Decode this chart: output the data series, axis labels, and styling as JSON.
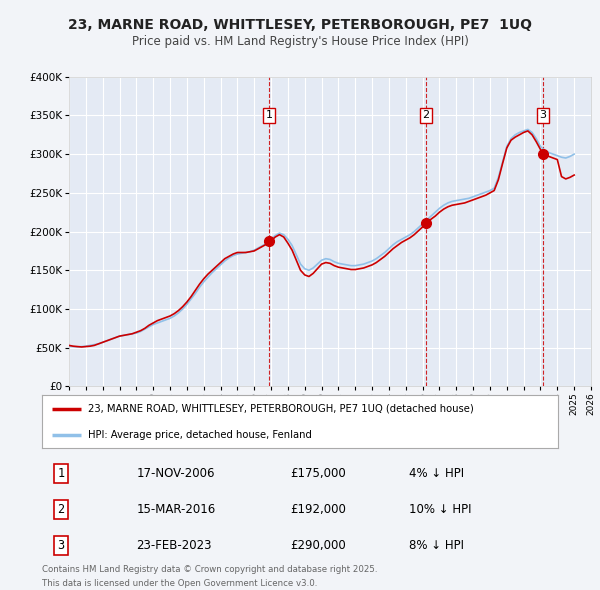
{
  "title": "23, MARNE ROAD, WHITTLESEY, PETERBOROUGH, PE7  1UQ",
  "subtitle": "Price paid vs. HM Land Registry's House Price Index (HPI)",
  "bg_color": "#f2f4f8",
  "plot_bg_color": "#e4eaf4",
  "red_line_label": "23, MARNE ROAD, WHITTLESEY, PETERBOROUGH, PE7 1UQ (detached house)",
  "blue_line_label": "HPI: Average price, detached house, Fenland",
  "transactions": [
    {
      "num": 1,
      "date": "17-NOV-2006",
      "price": 175000,
      "pct": "4%",
      "dir": "↓",
      "year": 2006.88
    },
    {
      "num": 2,
      "date": "15-MAR-2016",
      "price": 192000,
      "pct": "10%",
      "dir": "↓",
      "year": 2016.21
    },
    {
      "num": 3,
      "date": "23-FEB-2023",
      "price": 290000,
      "pct": "8%",
      "dir": "↓",
      "year": 2023.14
    }
  ],
  "footer_line1": "Contains HM Land Registry data © Crown copyright and database right 2025.",
  "footer_line2": "This data is licensed under the Open Government Licence v3.0.",
  "ylim": [
    0,
    400000
  ],
  "xlim_start": 1995.0,
  "xlim_end": 2026.0,
  "hpi_color": "#90c0e8",
  "price_color": "#cc0000",
  "vline_color": "#cc0000",
  "grid_color": "#ffffff",
  "hpi_data": {
    "years": [
      1995.0,
      1995.25,
      1995.5,
      1995.75,
      1996.0,
      1996.25,
      1996.5,
      1996.75,
      1997.0,
      1997.25,
      1997.5,
      1997.75,
      1998.0,
      1998.25,
      1998.5,
      1998.75,
      1999.0,
      1999.25,
      1999.5,
      1999.75,
      2000.0,
      2000.25,
      2000.5,
      2000.75,
      2001.0,
      2001.25,
      2001.5,
      2001.75,
      2002.0,
      2002.25,
      2002.5,
      2002.75,
      2003.0,
      2003.25,
      2003.5,
      2003.75,
      2004.0,
      2004.25,
      2004.5,
      2004.75,
      2005.0,
      2005.25,
      2005.5,
      2005.75,
      2006.0,
      2006.25,
      2006.5,
      2006.75,
      2007.0,
      2007.25,
      2007.5,
      2007.75,
      2008.0,
      2008.25,
      2008.5,
      2008.75,
      2009.0,
      2009.25,
      2009.5,
      2009.75,
      2010.0,
      2010.25,
      2010.5,
      2010.75,
      2011.0,
      2011.25,
      2011.5,
      2011.75,
      2012.0,
      2012.25,
      2012.5,
      2012.75,
      2013.0,
      2013.25,
      2013.5,
      2013.75,
      2014.0,
      2014.25,
      2014.5,
      2014.75,
      2015.0,
      2015.25,
      2015.5,
      2015.75,
      2016.0,
      2016.25,
      2016.5,
      2016.75,
      2017.0,
      2017.25,
      2017.5,
      2017.75,
      2018.0,
      2018.25,
      2018.5,
      2018.75,
      2019.0,
      2019.25,
      2019.5,
      2019.75,
      2020.0,
      2020.25,
      2020.5,
      2020.75,
      2021.0,
      2021.25,
      2021.5,
      2021.75,
      2022.0,
      2022.25,
      2022.5,
      2022.75,
      2023.0,
      2023.25,
      2023.5,
      2023.75,
      2024.0,
      2024.25,
      2024.5,
      2024.75,
      2025.0
    ],
    "values": [
      52000,
      51500,
      51000,
      51500,
      52000,
      53000,
      54000,
      55000,
      57000,
      59000,
      61000,
      63000,
      65000,
      66000,
      67000,
      68000,
      69000,
      71000,
      74000,
      77000,
      80000,
      82000,
      84000,
      86000,
      88000,
      91000,
      95000,
      100000,
      106000,
      113000,
      120000,
      128000,
      135000,
      141000,
      147000,
      152000,
      157000,
      162000,
      166000,
      169000,
      171000,
      172000,
      173000,
      174000,
      176000,
      179000,
      182000,
      185000,
      190000,
      195000,
      198000,
      196000,
      190000,
      182000,
      170000,
      158000,
      152000,
      150000,
      153000,
      158000,
      163000,
      165000,
      164000,
      161000,
      159000,
      158000,
      157000,
      156000,
      156000,
      157000,
      158000,
      160000,
      162000,
      165000,
      169000,
      173000,
      178000,
      183000,
      187000,
      190000,
      193000,
      196000,
      200000,
      205000,
      210000,
      215000,
      220000,
      225000,
      230000,
      234000,
      237000,
      239000,
      240000,
      241000,
      242000,
      243000,
      245000,
      247000,
      249000,
      251000,
      253000,
      256000,
      270000,
      290000,
      310000,
      320000,
      325000,
      328000,
      330000,
      332000,
      328000,
      320000,
      310000,
      305000,
      302000,
      300000,
      298000,
      296000,
      295000,
      297000,
      300000
    ]
  },
  "price_data": {
    "years": [
      1995.0,
      1995.25,
      1995.5,
      1995.75,
      1996.0,
      1996.25,
      1996.5,
      1996.75,
      1997.0,
      1997.25,
      1997.5,
      1997.75,
      1998.0,
      1998.25,
      1998.5,
      1998.75,
      1999.0,
      1999.25,
      1999.5,
      1999.75,
      2000.0,
      2000.25,
      2000.5,
      2000.75,
      2001.0,
      2001.25,
      2001.5,
      2001.75,
      2002.0,
      2002.25,
      2002.5,
      2002.75,
      2003.0,
      2003.25,
      2003.5,
      2003.75,
      2004.0,
      2004.25,
      2004.5,
      2004.75,
      2005.0,
      2005.25,
      2005.5,
      2005.75,
      2006.0,
      2006.25,
      2006.5,
      2006.75,
      2007.0,
      2007.25,
      2007.5,
      2007.75,
      2008.0,
      2008.25,
      2008.5,
      2008.75,
      2009.0,
      2009.25,
      2009.5,
      2009.75,
      2010.0,
      2010.25,
      2010.5,
      2010.75,
      2011.0,
      2011.25,
      2011.5,
      2011.75,
      2012.0,
      2012.25,
      2012.5,
      2012.75,
      2013.0,
      2013.25,
      2013.5,
      2013.75,
      2014.0,
      2014.25,
      2014.5,
      2014.75,
      2015.0,
      2015.25,
      2015.5,
      2015.75,
      2016.0,
      2016.25,
      2016.5,
      2016.75,
      2017.0,
      2017.25,
      2017.5,
      2017.75,
      2018.0,
      2018.25,
      2018.5,
      2018.75,
      2019.0,
      2019.25,
      2019.5,
      2019.75,
      2020.0,
      2020.25,
      2020.5,
      2020.75,
      2021.0,
      2021.25,
      2021.5,
      2021.75,
      2022.0,
      2022.25,
      2022.5,
      2022.75,
      2023.0,
      2023.25,
      2023.5,
      2023.75,
      2024.0,
      2024.25,
      2024.5,
      2024.75,
      2025.0
    ],
    "values": [
      53000,
      52000,
      51500,
      51000,
      51500,
      52000,
      53000,
      55000,
      57000,
      59000,
      61000,
      63000,
      65000,
      66000,
      67000,
      68000,
      70000,
      72000,
      75000,
      79000,
      82000,
      85000,
      87000,
      89000,
      91000,
      94000,
      98000,
      103000,
      109000,
      116000,
      124000,
      132000,
      139000,
      145000,
      150000,
      155000,
      160000,
      165000,
      168000,
      171000,
      173000,
      173000,
      173000,
      174000,
      175000,
      178000,
      181000,
      184000,
      188000,
      193000,
      196000,
      193000,
      185000,
      176000,
      163000,
      150000,
      144000,
      142000,
      146000,
      152000,
      158000,
      160000,
      159000,
      156000,
      154000,
      153000,
      152000,
      151000,
      151000,
      152000,
      153000,
      155000,
      157000,
      160000,
      164000,
      168000,
      173000,
      178000,
      182000,
      186000,
      189000,
      192000,
      196000,
      201000,
      206000,
      211000,
      216000,
      220000,
      225000,
      229000,
      232000,
      234000,
      235000,
      236000,
      237000,
      239000,
      241000,
      243000,
      245000,
      247000,
      250000,
      253000,
      267000,
      288000,
      308000,
      318000,
      322000,
      325000,
      328000,
      330000,
      325000,
      316000,
      306000,
      300000,
      297000,
      295000,
      293000,
      271000,
      268000,
      270000,
      273000
    ]
  }
}
